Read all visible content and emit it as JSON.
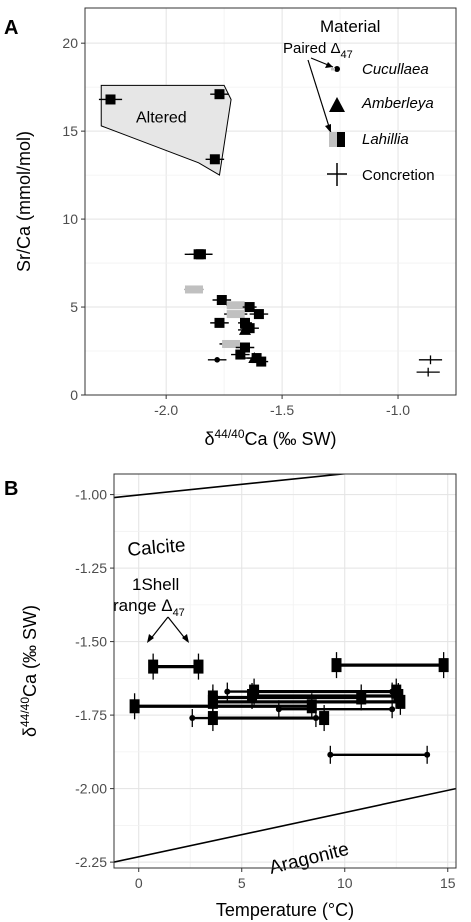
{
  "chart_data": [
    {
      "panel": "A",
      "type": "scatter",
      "xlabel": "δ44/40Ca (‰ SW)",
      "ylabel": "Sr/Ca (mmol/mol)",
      "xlim": [
        -2.35,
        -0.75
      ],
      "ylim": [
        0,
        22
      ],
      "xticks": [
        "-2.0",
        "-1.5",
        "-1.0"
      ],
      "xtick_values": [
        -2.0,
        -1.5,
        -1.0
      ],
      "yticks": [
        "0",
        "5",
        "10",
        "15",
        "20"
      ],
      "ytick_values": [
        0,
        5,
        10,
        15,
        20
      ],
      "grid": true,
      "legend": {
        "title": "Material",
        "position": "top-right",
        "entries": [
          "Cucullaea",
          "Amberleya",
          "Lahillia",
          "Concretion"
        ]
      },
      "annotations": {
        "altered": "Altered",
        "paired": "Paired Δ",
        "paired_sub": "47"
      },
      "altered_polygon": [
        [
          -2.28,
          17.6
        ],
        [
          -1.75,
          17.6
        ],
        [
          -1.72,
          16.8
        ],
        [
          -1.77,
          12.5
        ],
        [
          -1.86,
          13.2
        ],
        [
          -2.28,
          15.3
        ]
      ],
      "points": [
        {
          "material": "Lahillia",
          "x": -2.24,
          "y": 16.8,
          "xerr": 0.05,
          "paired": false
        },
        {
          "material": "Lahillia",
          "x": -1.77,
          "y": 17.1,
          "xerr": 0.04,
          "paired": false
        },
        {
          "material": "Lahillia",
          "x": -1.79,
          "y": 13.4,
          "xerr": 0.04,
          "paired": false
        },
        {
          "material": "Lahillia",
          "x": -1.86,
          "y": 8.0,
          "xerr": 0.06,
          "paired": false
        },
        {
          "material": "Lahillia",
          "x": -1.85,
          "y": 8.0,
          "xerr": 0.05,
          "paired": false
        },
        {
          "material": "Lahillia",
          "x": -1.88,
          "y": 6.0,
          "xerr": 0.04,
          "paired": true
        },
        {
          "material": "Lahillia",
          "x": -1.76,
          "y": 5.4,
          "xerr": 0.04,
          "paired": false
        },
        {
          "material": "Lahillia",
          "x": -1.7,
          "y": 5.1,
          "xerr": 0.04,
          "paired": true
        },
        {
          "material": "Lahillia",
          "x": -1.64,
          "y": 5.0,
          "xerr": 0.03,
          "paired": false
        },
        {
          "material": "Lahillia",
          "x": -1.6,
          "y": 4.6,
          "xerr": 0.04,
          "paired": false
        },
        {
          "material": "Lahillia",
          "x": -1.7,
          "y": 4.6,
          "xerr": 0.05,
          "paired": true
        },
        {
          "material": "Lahillia",
          "x": -1.77,
          "y": 4.1,
          "xerr": 0.04,
          "paired": false
        },
        {
          "material": "Lahillia",
          "x": -1.66,
          "y": 4.1,
          "xerr": 0.03,
          "paired": false
        },
        {
          "material": "Lahillia",
          "x": -1.64,
          "y": 3.8,
          "xerr": 0.04,
          "paired": false
        },
        {
          "material": "Lahillia",
          "x": -1.72,
          "y": 2.9,
          "xerr": 0.05,
          "paired": true
        },
        {
          "material": "Lahillia",
          "x": -1.66,
          "y": 2.7,
          "xerr": 0.04,
          "paired": false
        },
        {
          "material": "Lahillia",
          "x": -1.68,
          "y": 2.3,
          "xerr": 0.04,
          "paired": false
        },
        {
          "material": "Lahillia",
          "x": -1.61,
          "y": 2.1,
          "xerr": 0.04,
          "paired": false
        },
        {
          "material": "Lahillia",
          "x": -1.59,
          "y": 1.9,
          "xerr": 0.03,
          "paired": false
        },
        {
          "material": "Amberleya",
          "x": -1.66,
          "y": 3.7,
          "xerr": 0.03,
          "paired": false
        },
        {
          "material": "Amberleya",
          "x": -1.62,
          "y": 2.1,
          "xerr": 0.04,
          "paired": false
        },
        {
          "material": "Cucullaea",
          "x": -1.78,
          "y": 2.0,
          "xerr": 0.04,
          "paired": true
        },
        {
          "material": "Concretion",
          "x": -0.86,
          "y": 2.0,
          "xerr": 0.05,
          "yerr": 0.25,
          "paired": false
        },
        {
          "material": "Concretion",
          "x": -0.87,
          "y": 1.3,
          "xerr": 0.05,
          "yerr": 0.25,
          "paired": false
        }
      ]
    },
    {
      "panel": "B",
      "type": "scatter",
      "xlabel": "Temperature (°C)",
      "ylabel": "δ44/40Ca (‰ SW)",
      "xlim": [
        -1.2,
        15.4
      ],
      "ylim": [
        -2.27,
        -0.93
      ],
      "xticks": [
        "0",
        "5",
        "10",
        "15"
      ],
      "xtick_values": [
        0,
        5,
        10,
        15
      ],
      "yticks": [
        "-1.00",
        "-1.25",
        "-1.50",
        "-1.75",
        "-2.00",
        "-2.25"
      ],
      "ytick_values": [
        -1.0,
        -1.25,
        -1.5,
        -1.75,
        -2.0,
        -2.25
      ],
      "grid": true,
      "annotations": {
        "calcite": "Calcite",
        "aragonite": "Aragonite",
        "shell_line1": "1Shell",
        "shell_line2": "range Δ",
        "shell_sub": "47"
      },
      "lines": [
        {
          "name": "Calcite",
          "x": [
            -1.2,
            15.4
          ],
          "y": [
            -1.01,
            -0.89
          ]
        },
        {
          "name": "Aragonite",
          "x": [
            -1.2,
            15.4
          ],
          "y": [
            -2.25,
            -2.0
          ]
        }
      ],
      "ranges": [
        {
          "material": "Lahillia",
          "xmin": 0.7,
          "xmax": 2.9,
          "y": -1.585
        },
        {
          "material": "Lahillia",
          "xmin": 9.6,
          "xmax": 14.8,
          "y": -1.58
        },
        {
          "material": "Lahillia",
          "xmin": -0.2,
          "xmax": 8.4,
          "y": -1.72
        },
        {
          "material": "Lahillia",
          "xmin": 3.6,
          "xmax": 12.7,
          "y": -1.705
        },
        {
          "material": "Lahillia",
          "xmin": 5.6,
          "xmax": 12.5,
          "y": -1.67
        },
        {
          "material": "Lahillia",
          "xmin": 3.6,
          "xmax": 10.8,
          "y": -1.69
        },
        {
          "material": "Lahillia",
          "xmin": 3.6,
          "xmax": 9.0,
          "y": -1.76
        },
        {
          "material": "Lahillia",
          "xmin": 5.5,
          "xmax": 12.6,
          "y": -1.685
        },
        {
          "material": "Cucullaea",
          "xmin": 9.3,
          "xmax": 14.0,
          "y": -1.885
        },
        {
          "material": "Cucullaea",
          "xmin": 2.6,
          "xmax": 8.6,
          "y": -1.76
        },
        {
          "material": "Cucullaea",
          "xmin": 4.3,
          "xmax": 12.3,
          "y": -1.67
        },
        {
          "material": "Cucullaea",
          "xmin": 6.8,
          "xmax": 12.3,
          "y": -1.73
        }
      ]
    }
  ],
  "colors": {
    "frame": "#333333",
    "grid": "#e3e3e3",
    "altered_fill": "#e6e6e6",
    "marker_dark": "#000000",
    "marker_light": "#c0c0c0"
  }
}
